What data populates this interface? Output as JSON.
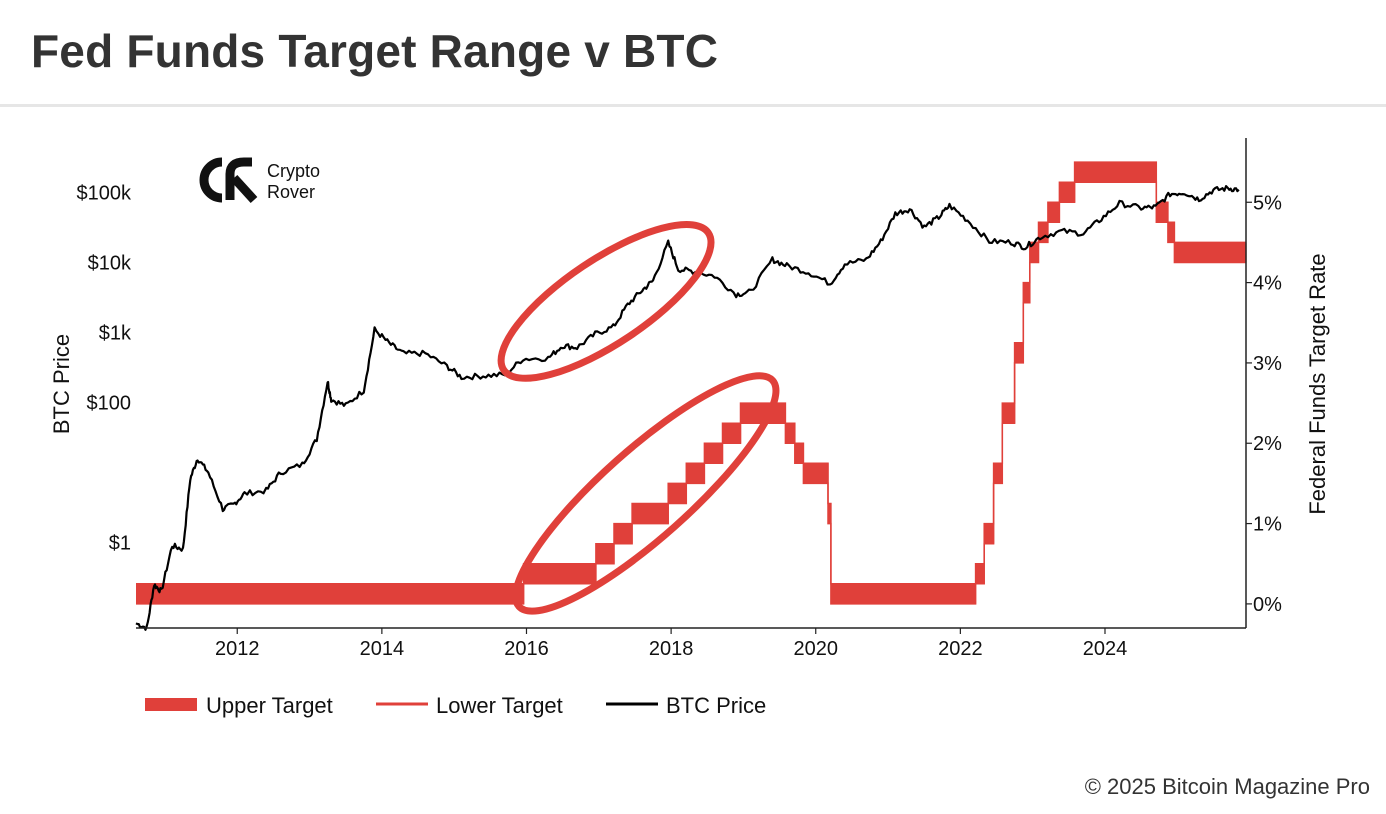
{
  "title": "Fed Funds Target Range v BTC",
  "footer": "© 2025 Bitcoin Magazine Pro",
  "logo": {
    "line1": "Crypto",
    "line2": "Rover",
    "icon": "cr-monogram-icon"
  },
  "colors": {
    "fed_rate": "#e0403a",
    "btc": "#000000",
    "highlight": "#e0403a",
    "axis": "#222222"
  },
  "chart_data": {
    "type": "line",
    "x_ticks": [
      "2012",
      "2014",
      "2016",
      "2018",
      "2020",
      "2022",
      "2024"
    ],
    "xlim": [
      2010.6,
      2025.95
    ],
    "y_left": {
      "label": "BTC Price",
      "scale": "log",
      "ticks": [
        {
          "label": "$1",
          "value": 1
        },
        {
          "label": "$100",
          "value": 100
        },
        {
          "label": "$1k",
          "value": 1000
        },
        {
          "label": "$10k",
          "value": 10000
        },
        {
          "label": "$100k",
          "value": 100000
        }
      ],
      "range": [
        0.06,
        600000
      ]
    },
    "y_right": {
      "label": "Federal Funds Target Rate",
      "ticks": [
        "0%",
        "1%",
        "2%",
        "3%",
        "4%",
        "5%"
      ],
      "range": [
        -0.3,
        5.8
      ]
    },
    "legend": [
      "Upper Target",
      "Lower Target",
      "BTC Price"
    ],
    "series": [
      {
        "name": "Upper Target",
        "type": "step",
        "points": [
          [
            2010.6,
            0.25
          ],
          [
            2015.96,
            0.5
          ],
          [
            2016.96,
            0.75
          ],
          [
            2017.21,
            1.0
          ],
          [
            2017.46,
            1.25
          ],
          [
            2017.96,
            1.5
          ],
          [
            2018.21,
            1.75
          ],
          [
            2018.46,
            2.0
          ],
          [
            2018.71,
            2.25
          ],
          [
            2018.96,
            2.5
          ],
          [
            2019.58,
            2.25
          ],
          [
            2019.71,
            2.0
          ],
          [
            2019.83,
            1.75
          ],
          [
            2020.17,
            1.25
          ],
          [
            2020.21,
            0.25
          ],
          [
            2022.21,
            0.5
          ],
          [
            2022.33,
            1.0
          ],
          [
            2022.46,
            1.75
          ],
          [
            2022.58,
            2.5
          ],
          [
            2022.75,
            3.25
          ],
          [
            2022.87,
            4.0
          ],
          [
            2022.96,
            4.5
          ],
          [
            2023.08,
            4.75
          ],
          [
            2023.21,
            5.0
          ],
          [
            2023.37,
            5.25
          ],
          [
            2023.58,
            5.5
          ],
          [
            2024.71,
            5.0
          ],
          [
            2024.87,
            4.75
          ],
          [
            2024.96,
            4.5
          ],
          [
            2025.95,
            4.5
          ]
        ]
      },
      {
        "name": "Lower Target",
        "type": "step",
        "points": [
          [
            2010.6,
            0.0
          ],
          [
            2015.96,
            0.25
          ],
          [
            2016.96,
            0.5
          ],
          [
            2017.21,
            0.75
          ],
          [
            2017.46,
            1.0
          ],
          [
            2017.96,
            1.25
          ],
          [
            2018.21,
            1.5
          ],
          [
            2018.46,
            1.75
          ],
          [
            2018.71,
            2.0
          ],
          [
            2018.96,
            2.25
          ],
          [
            2019.58,
            2.0
          ],
          [
            2019.71,
            1.75
          ],
          [
            2019.83,
            1.5
          ],
          [
            2020.17,
            1.0
          ],
          [
            2020.21,
            0.0
          ],
          [
            2022.21,
            0.25
          ],
          [
            2022.33,
            0.75
          ],
          [
            2022.46,
            1.5
          ],
          [
            2022.58,
            2.25
          ],
          [
            2022.75,
            3.0
          ],
          [
            2022.87,
            3.75
          ],
          [
            2022.96,
            4.25
          ],
          [
            2023.08,
            4.5
          ],
          [
            2023.21,
            4.75
          ],
          [
            2023.37,
            5.0
          ],
          [
            2023.58,
            5.25
          ],
          [
            2024.71,
            4.75
          ],
          [
            2024.87,
            4.5
          ],
          [
            2024.96,
            4.25
          ],
          [
            2025.95,
            4.25
          ]
        ]
      },
      {
        "name": "BTC Price",
        "type": "line",
        "points": [
          [
            2010.6,
            0.07
          ],
          [
            2010.75,
            0.06
          ],
          [
            2010.85,
            0.25
          ],
          [
            2010.95,
            0.2
          ],
          [
            2011.1,
            0.9
          ],
          [
            2011.25,
            0.8
          ],
          [
            2011.35,
            8
          ],
          [
            2011.45,
            16
          ],
          [
            2011.6,
            10
          ],
          [
            2011.8,
            3
          ],
          [
            2011.95,
            3.5
          ],
          [
            2012.1,
            5
          ],
          [
            2012.4,
            5.5
          ],
          [
            2012.6,
            10
          ],
          [
            2012.9,
            13
          ],
          [
            2013.1,
            30
          ],
          [
            2013.25,
            200
          ],
          [
            2013.3,
            110
          ],
          [
            2013.5,
            90
          ],
          [
            2013.75,
            150
          ],
          [
            2013.9,
            1100
          ],
          [
            2014.1,
            700
          ],
          [
            2014.3,
            500
          ],
          [
            2014.6,
            500
          ],
          [
            2014.9,
            330
          ],
          [
            2015.1,
            230
          ],
          [
            2015.4,
            240
          ],
          [
            2015.7,
            250
          ],
          [
            2015.95,
            420
          ],
          [
            2016.3,
            430
          ],
          [
            2016.5,
            650
          ],
          [
            2016.7,
            610
          ],
          [
            2016.95,
            950
          ],
          [
            2017.2,
            1200
          ],
          [
            2017.4,
            2500
          ],
          [
            2017.6,
            4000
          ],
          [
            2017.75,
            5500
          ],
          [
            2017.96,
            19000
          ],
          [
            2018.1,
            8000
          ],
          [
            2018.3,
            7500
          ],
          [
            2018.6,
            6400
          ],
          [
            2018.9,
            3500
          ],
          [
            2019.1,
            3800
          ],
          [
            2019.4,
            11000
          ],
          [
            2019.6,
            9000
          ],
          [
            2019.9,
            7200
          ],
          [
            2020.2,
            5000
          ],
          [
            2020.4,
            9500
          ],
          [
            2020.7,
            11000
          ],
          [
            2020.9,
            20000
          ],
          [
            2021.1,
            50000
          ],
          [
            2021.3,
            58000
          ],
          [
            2021.5,
            32000
          ],
          [
            2021.7,
            44000
          ],
          [
            2021.85,
            65000
          ],
          [
            2022.1,
            40000
          ],
          [
            2022.4,
            20000
          ],
          [
            2022.7,
            19500
          ],
          [
            2022.9,
            16500
          ],
          [
            2023.1,
            23000
          ],
          [
            2023.4,
            28000
          ],
          [
            2023.7,
            26000
          ],
          [
            2023.95,
            42000
          ],
          [
            2024.2,
            70000
          ],
          [
            2024.5,
            60000
          ],
          [
            2024.7,
            62000
          ],
          [
            2024.9,
            95000
          ],
          [
            2025.1,
            100000
          ],
          [
            2025.3,
            80000
          ],
          [
            2025.5,
            108000
          ],
          [
            2025.7,
            115000
          ],
          [
            2025.85,
            110000
          ]
        ]
      }
    ],
    "annotations": [
      {
        "type": "ellipse",
        "target": "BTC Price",
        "from": 2015.8,
        "to": 2018.4
      },
      {
        "type": "ellipse",
        "target": "Upper Target",
        "from": 2016.0,
        "to": 2019.3
      }
    ]
  }
}
